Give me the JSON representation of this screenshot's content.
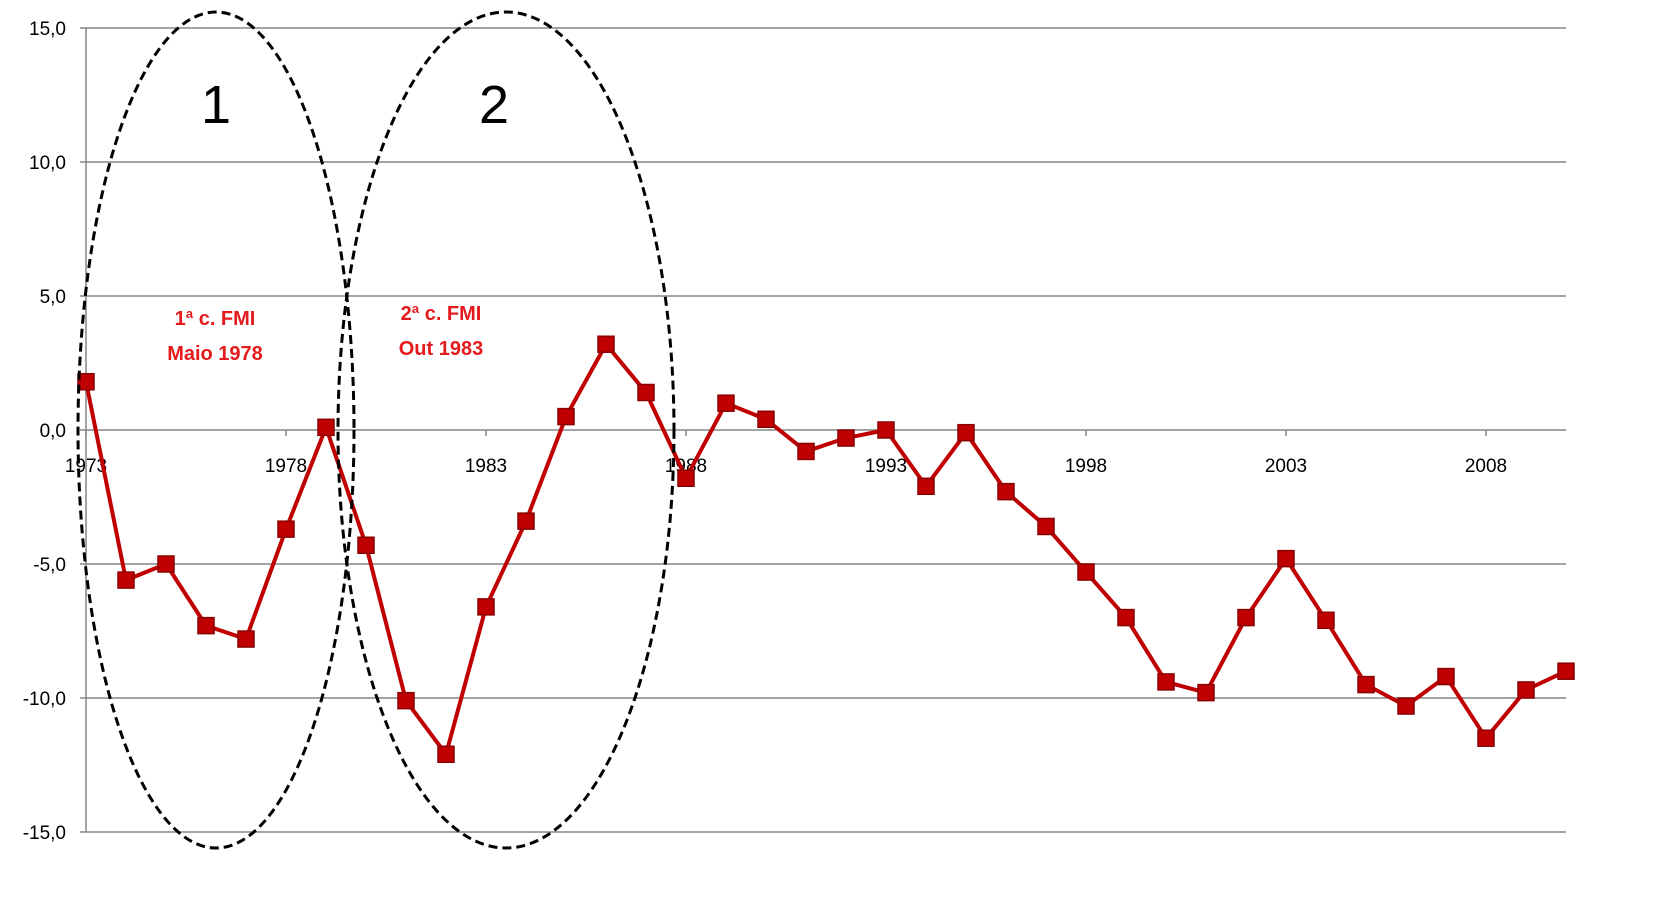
{
  "chart_data": {
    "type": "line",
    "title": "",
    "xlabel": "",
    "ylabel": "",
    "ylim": [
      -15,
      15
    ],
    "y_ticks": [
      "15,0",
      "10,0",
      "5,0",
      "0,0",
      "-5,0",
      "-10,0",
      "-15,0"
    ],
    "y_tick_values": [
      15,
      10,
      5,
      0,
      -5,
      -10,
      -15
    ],
    "x_ticks": [
      "1973",
      "1978",
      "1983",
      "1988",
      "1993",
      "1998",
      "2003",
      "2008"
    ],
    "x_tick_values": [
      1973,
      1978,
      1983,
      1988,
      1993,
      1998,
      2003,
      2008
    ],
    "xlim": [
      1973,
      2010
    ],
    "grid": "horizontal",
    "series": [
      {
        "color": "#c00000",
        "marker": "square",
        "x": [
          1973,
          1974,
          1975,
          1976,
          1977,
          1978,
          1979,
          1980,
          1981,
          1982,
          1983,
          1984,
          1985,
          1986,
          1987,
          1988,
          1989,
          1990,
          1991,
          1992,
          1993,
          1994,
          1995,
          1996,
          1997,
          1998,
          1999,
          2000,
          2001,
          2002,
          2003,
          2004,
          2005,
          2006,
          2007,
          2008,
          2009,
          2010
        ],
        "values": [
          1.8,
          -5.6,
          -5.0,
          -7.3,
          -7.8,
          -3.7,
          0.1,
          -4.3,
          -10.1,
          -12.1,
          -6.6,
          -3.4,
          0.5,
          3.2,
          1.4,
          -1.8,
          1.0,
          0.4,
          -0.8,
          -0.3,
          0.0,
          -2.1,
          -0.1,
          -2.3,
          -3.6,
          -5.3,
          -7.0,
          -9.4,
          -9.8,
          -7.0,
          -4.8,
          -7.1,
          -9.5,
          -10.3,
          -9.2,
          -11.5,
          -9.7,
          -9.0
        ]
      }
    ],
    "annotations": [
      {
        "lines": [
          "1ª c. FMI",
          "Maio  1978"
        ],
        "color": "#e41a1c"
      },
      {
        "lines": [
          "2ª c. FMI",
          "Out  1983"
        ],
        "color": "#e41a1c"
      }
    ],
    "regions": [
      {
        "label": "1",
        "x_from": 1973,
        "x_to": 1979.5
      },
      {
        "label": "2",
        "x_from": 1979.5,
        "x_to": 1987.5
      }
    ]
  }
}
